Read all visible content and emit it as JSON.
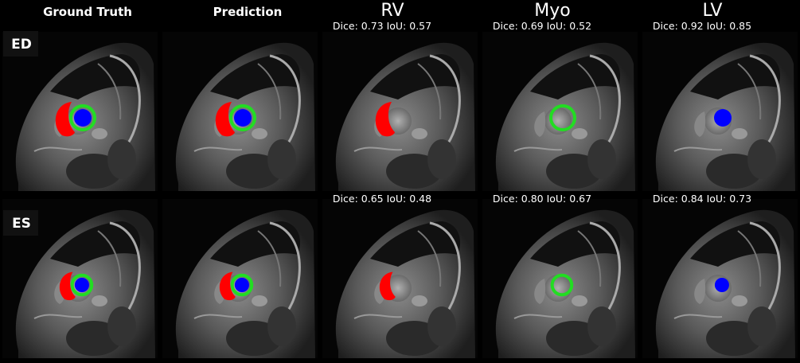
{
  "columns": [
    "Ground Truth",
    "Prediction",
    "RV",
    "Myo",
    "LV"
  ],
  "rows": [
    {
      "label": "ED",
      "metrics": [
        "Dice: 0.73 IoU: 0.57",
        "Dice: 0.69 IoU: 0.52",
        "Dice: 0.92 IoU: 0.85"
      ]
    },
    {
      "label": "ES",
      "metrics": [
        "Dice: 0.65 IoU: 0.48",
        "Dice: 0.80 IoU: 0.67",
        "Dice: 0.84 IoU: 0.73"
      ]
    }
  ]
}
